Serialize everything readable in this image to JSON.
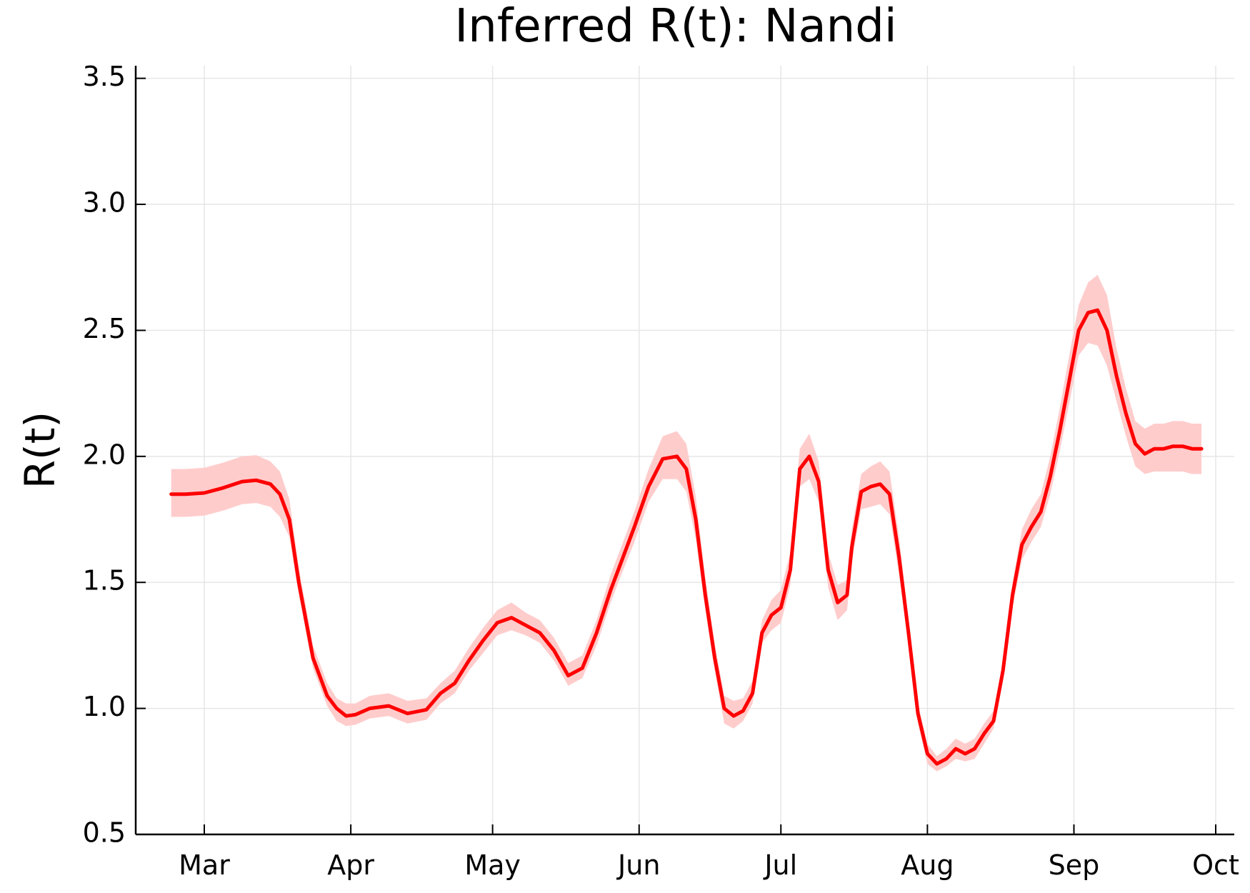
{
  "chart_data": {
    "type": "line",
    "title": "Inferred R(t): Nandi",
    "xlabel": "",
    "ylabel": "R(t)",
    "ylim": [
      0.5,
      3.55
    ],
    "grid": true,
    "legend": "none",
    "x_tick_labels": [
      "Mar",
      "Apr",
      "May",
      "Jun",
      "Jul",
      "Aug",
      "Sep",
      "Oct"
    ],
    "y_ticks": [
      0.5,
      1.0,
      1.5,
      2.0,
      2.5,
      3.0,
      3.5
    ],
    "y_tick_labels": [
      "0.5",
      "1.0",
      "1.5",
      "2.0",
      "2.5",
      "3.0",
      "3.5"
    ],
    "colors": {
      "line": "#ff0000",
      "band": "#ffcccc",
      "grid": "#e6e6e6",
      "axis": "#000000"
    },
    "series": [
      {
        "x": [
          "2020-02-23",
          "2020-02-26",
          "2020-03-01",
          "2020-03-05",
          "2020-03-09",
          "2020-03-12",
          "2020-03-15",
          "2020-03-17",
          "2020-03-19",
          "2020-03-21",
          "2020-03-24",
          "2020-03-27",
          "2020-03-29",
          "2020-03-31",
          "2020-04-02",
          "2020-04-05",
          "2020-04-09",
          "2020-04-13",
          "2020-04-17",
          "2020-04-20",
          "2020-04-23",
          "2020-04-26",
          "2020-04-29",
          "2020-05-02",
          "2020-05-05",
          "2020-05-08",
          "2020-05-11",
          "2020-05-14",
          "2020-05-17",
          "2020-05-20",
          "2020-05-23",
          "2020-05-26",
          "2020-05-28",
          "2020-05-31",
          "2020-06-03",
          "2020-06-06",
          "2020-06-09",
          "2020-06-11",
          "2020-06-13",
          "2020-06-15",
          "2020-06-17",
          "2020-06-19",
          "2020-06-21",
          "2020-06-23",
          "2020-06-25",
          "2020-06-27",
          "2020-06-29",
          "2020-07-01",
          "2020-07-03",
          "2020-07-05",
          "2020-07-07",
          "2020-07-09",
          "2020-07-11",
          "2020-07-13",
          "2020-07-15",
          "2020-07-16",
          "2020-07-18",
          "2020-07-20",
          "2020-07-22",
          "2020-07-24",
          "2020-07-26",
          "2020-07-28",
          "2020-07-30",
          "2020-08-01",
          "2020-08-03",
          "2020-08-05",
          "2020-08-07",
          "2020-08-09",
          "2020-08-11",
          "2020-08-13",
          "2020-08-15",
          "2020-08-17",
          "2020-08-19",
          "2020-08-21",
          "2020-08-23",
          "2020-08-25",
          "2020-08-27",
          "2020-08-29",
          "2020-08-31",
          "2020-09-02",
          "2020-09-04",
          "2020-09-06",
          "2020-09-08",
          "2020-09-10",
          "2020-09-12",
          "2020-09-14",
          "2020-09-16",
          "2020-09-18",
          "2020-09-20",
          "2020-09-22",
          "2020-09-24",
          "2020-09-26",
          "2020-09-28"
        ],
        "values": [
          1.85,
          1.85,
          1.855,
          1.875,
          1.9,
          1.905,
          1.89,
          1.85,
          1.75,
          1.5,
          1.2,
          1.05,
          1.0,
          0.97,
          0.975,
          1.0,
          1.01,
          0.98,
          0.995,
          1.06,
          1.1,
          1.19,
          1.27,
          1.34,
          1.36,
          1.33,
          1.3,
          1.23,
          1.13,
          1.16,
          1.3,
          1.47,
          1.57,
          1.72,
          1.88,
          1.99,
          2.0,
          1.95,
          1.75,
          1.45,
          1.2,
          1.0,
          0.97,
          0.99,
          1.06,
          1.3,
          1.37,
          1.4,
          1.55,
          1.95,
          2.0,
          1.9,
          1.55,
          1.42,
          1.45,
          1.64,
          1.86,
          1.88,
          1.89,
          1.85,
          1.6,
          1.3,
          0.98,
          0.82,
          0.78,
          0.8,
          0.84,
          0.82,
          0.84,
          0.9,
          0.95,
          1.15,
          1.45,
          1.65,
          1.72,
          1.78,
          1.92,
          2.1,
          2.3,
          2.5,
          2.57,
          2.58,
          2.5,
          2.32,
          2.17,
          2.05,
          2.01,
          2.03,
          2.03,
          2.04,
          2.04,
          2.03,
          2.03
        ],
        "lower": [
          1.76,
          1.76,
          1.765,
          1.785,
          1.81,
          1.815,
          1.8,
          1.76,
          1.68,
          1.45,
          1.16,
          1.01,
          0.95,
          0.93,
          0.935,
          0.96,
          0.97,
          0.94,
          0.955,
          1.02,
          1.06,
          1.15,
          1.22,
          1.29,
          1.31,
          1.29,
          1.26,
          1.19,
          1.09,
          1.12,
          1.25,
          1.42,
          1.52,
          1.66,
          1.82,
          1.91,
          1.91,
          1.86,
          1.67,
          1.39,
          1.15,
          0.94,
          0.92,
          0.95,
          1.02,
          1.26,
          1.31,
          1.34,
          1.49,
          1.88,
          1.91,
          1.82,
          1.48,
          1.35,
          1.39,
          1.58,
          1.79,
          1.8,
          1.81,
          1.77,
          1.53,
          1.25,
          0.94,
          0.78,
          0.75,
          0.77,
          0.8,
          0.79,
          0.8,
          0.86,
          0.92,
          1.11,
          1.4,
          1.59,
          1.66,
          1.72,
          1.85,
          2.02,
          2.21,
          2.4,
          2.45,
          2.44,
          2.36,
          2.22,
          2.08,
          1.96,
          1.93,
          1.94,
          1.94,
          1.94,
          1.94,
          1.93,
          1.93
        ],
        "upper": [
          1.95,
          1.95,
          1.955,
          1.975,
          2.0,
          2.005,
          1.98,
          1.94,
          1.83,
          1.56,
          1.25,
          1.1,
          1.04,
          1.02,
          1.02,
          1.05,
          1.06,
          1.03,
          1.04,
          1.1,
          1.15,
          1.24,
          1.32,
          1.39,
          1.42,
          1.38,
          1.35,
          1.28,
          1.18,
          1.21,
          1.35,
          1.53,
          1.63,
          1.78,
          1.95,
          2.08,
          2.1,
          2.05,
          1.84,
          1.52,
          1.26,
          1.05,
          1.03,
          1.04,
          1.11,
          1.35,
          1.43,
          1.47,
          1.62,
          2.03,
          2.09,
          1.98,
          1.62,
          1.49,
          1.51,
          1.71,
          1.93,
          1.96,
          1.98,
          1.94,
          1.68,
          1.35,
          1.02,
          0.86,
          0.81,
          0.84,
          0.88,
          0.86,
          0.88,
          0.94,
          0.99,
          1.19,
          1.5,
          1.71,
          1.79,
          1.85,
          2.0,
          2.19,
          2.4,
          2.6,
          2.69,
          2.72,
          2.64,
          2.43,
          2.27,
          2.14,
          2.11,
          2.13,
          2.13,
          2.14,
          2.14,
          2.13,
          2.13
        ]
      }
    ]
  }
}
